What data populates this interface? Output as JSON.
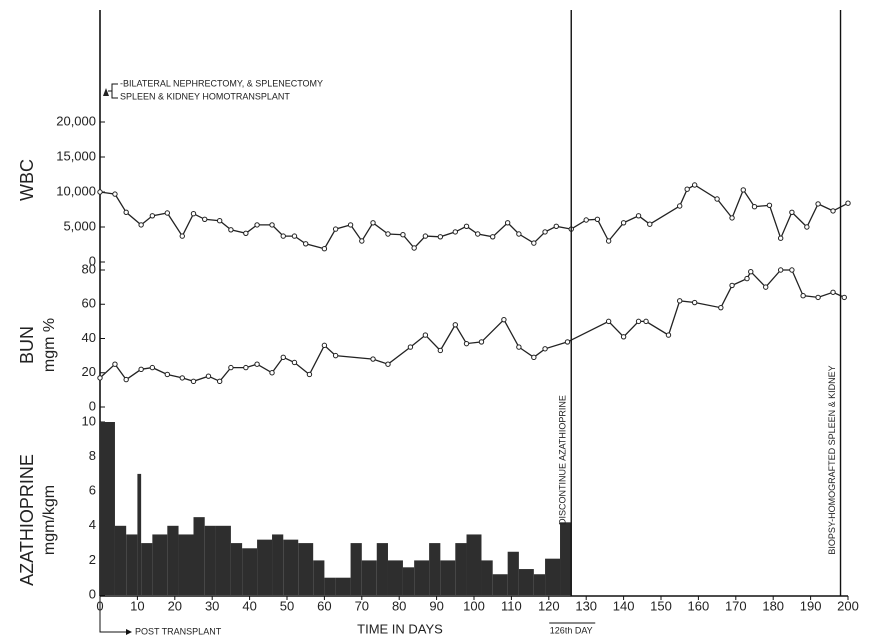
{
  "chart_data": [
    {
      "type": "line",
      "ylabel": [
        "WBC"
      ],
      "annotations": [
        "-BILATERAL NEPHRECTOMY, & SPLENECTOMY",
        "SPLEEN & KIDNEY HOMOTRANSPLANT"
      ],
      "xlim": [
        0,
        200
      ],
      "ylim": [
        0,
        20000
      ],
      "yticks": [
        0,
        {
          "value": 5000,
          "label": "5,000"
        },
        {
          "value": 10000,
          "label": "10,000"
        },
        {
          "value": 15000,
          "label": "15,000"
        },
        {
          "value": 20000,
          "label": "20,000"
        }
      ],
      "color": "#222222",
      "x": [
        0,
        4,
        7,
        11,
        14,
        18,
        22,
        25,
        28,
        32,
        35,
        39,
        42,
        46,
        49,
        52,
        55,
        60,
        63,
        67,
        70,
        73,
        77,
        81,
        84,
        87,
        91,
        95,
        98,
        101,
        105,
        109,
        112,
        116,
        119,
        122,
        126,
        130,
        133,
        136,
        140,
        144,
        147,
        155,
        157,
        159,
        165,
        169,
        172,
        175,
        179,
        182,
        185,
        189,
        192,
        196,
        200
      ],
      "values": [
        10000,
        9700,
        7100,
        5300,
        6600,
        7000,
        3700,
        6900,
        6100,
        5900,
        4600,
        4100,
        5300,
        5300,
        3700,
        3700,
        2600,
        1900,
        4700,
        5300,
        3000,
        5600,
        4000,
        3900,
        2000,
        3700,
        3600,
        4300,
        5100,
        4000,
        3600,
        5600,
        4000,
        2700,
        4300,
        5100,
        4700,
        6000,
        6100,
        3000,
        5600,
        6600,
        5400,
        8000,
        10400,
        11000,
        9000,
        6300,
        10300,
        7900,
        8100,
        3400,
        7100,
        5000,
        8300,
        7300,
        8400
      ]
    },
    {
      "type": "line",
      "ylabel": [
        "BUN",
        "mgm %"
      ],
      "xlim": [
        0,
        200
      ],
      "ylim": [
        0,
        80
      ],
      "yticks": [
        0,
        20,
        40,
        60,
        80
      ],
      "color": "#222222",
      "x": [
        0,
        4,
        7,
        11,
        14,
        18,
        22,
        25,
        29,
        32,
        35,
        39,
        42,
        46,
        49,
        52,
        56,
        60,
        63,
        73,
        77,
        83,
        87,
        91,
        95,
        98,
        102,
        108,
        112,
        116,
        119,
        125,
        136,
        140,
        144,
        146,
        152,
        155,
        159,
        166,
        169,
        173,
        174,
        178,
        182,
        185,
        188,
        192,
        196,
        199
      ],
      "values": [
        17,
        25,
        16,
        22,
        23,
        19,
        17,
        15,
        18,
        15,
        23,
        23,
        25,
        20,
        29,
        26,
        19,
        36,
        30,
        28,
        25,
        35,
        42,
        33,
        48,
        37,
        38,
        51,
        35,
        29,
        34,
        38,
        50,
        41,
        50,
        50,
        42,
        62,
        61,
        58,
        71,
        75,
        79,
        70,
        80,
        80,
        65,
        64,
        67,
        64
      ]
    },
    {
      "type": "histogram",
      "ylabel": [
        "AZATHIOPRINE",
        "mgm/kgm"
      ],
      "xlabel": "TIME IN DAYS",
      "xlim": [
        0,
        200
      ],
      "xticks": [
        0,
        10,
        20,
        30,
        40,
        50,
        60,
        70,
        80,
        90,
        100,
        110,
        120,
        130,
        140,
        150,
        160,
        170,
        180,
        190,
        200
      ],
      "ylim": [
        0,
        10
      ],
      "yticks": [
        0,
        2,
        4,
        6,
        8,
        10
      ],
      "color": "#2e2e2e",
      "bins": [
        0,
        4,
        7,
        10,
        11,
        14,
        18,
        21,
        25,
        28,
        31,
        35,
        38,
        42,
        46,
        49,
        53,
        57,
        60,
        63,
        67,
        70,
        74,
        77,
        81,
        84,
        88,
        91,
        95,
        98,
        102,
        105,
        109,
        112,
        116,
        119,
        123,
        126
      ],
      "values": [
        10,
        4,
        3.5,
        7,
        3,
        3.5,
        4,
        3.5,
        4.5,
        4,
        4,
        3,
        2.7,
        3.2,
        3.5,
        3.2,
        3,
        2,
        1,
        1,
        3,
        2,
        3,
        2,
        1.6,
        2,
        3,
        2,
        3,
        3.5,
        2,
        1.2,
        2.5,
        1.5,
        1.2,
        2.1,
        4.2
      ],
      "annotations": [
        {
          "x": 126,
          "text": "DISCONTINUE AZATHIOPRINE",
          "place": "vertical"
        },
        {
          "x": 198,
          "text": "BIOPSY-HOMOGRAFTED SPLEEN & KIDNEY",
          "place": "vertical"
        },
        {
          "x": 0,
          "text": "POST TRANSPLANT",
          "place": "below"
        },
        {
          "x": 126,
          "text": "126th DAY",
          "place": "below"
        }
      ]
    }
  ]
}
